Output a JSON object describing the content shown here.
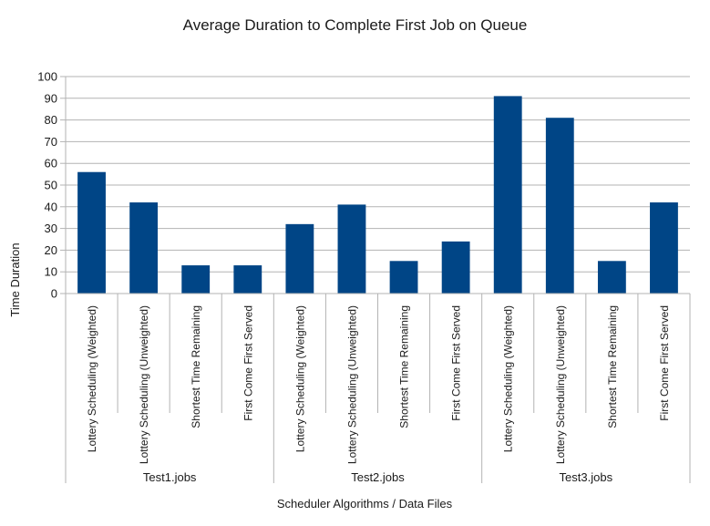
{
  "chart_data": {
    "type": "bar",
    "title": "Average Duration to Complete First Job on Queue",
    "xlabel": "Scheduler Algorithms / Data Files",
    "ylabel": "Time Duration",
    "ylim": [
      0,
      100
    ],
    "yticks": [
      0,
      10,
      20,
      30,
      40,
      50,
      60,
      70,
      80,
      90,
      100
    ],
    "grid": true,
    "legend": "none",
    "bar_color": "#004586",
    "groups": [
      {
        "name": "Test1.jobs",
        "categories": [
          "Lottery Scheduling (Weighted)",
          "Lottery Scheduling (Unweighted)",
          "Shortest Time Remaining",
          "First Come First Served"
        ],
        "values": [
          56,
          42,
          13,
          13
        ]
      },
      {
        "name": "Test2.jobs",
        "categories": [
          "Lottery Scheduling (Weighted)",
          "Lottery Scheduling (Unweighted)",
          "Shortest Time Remaining",
          "First Come First Served"
        ],
        "values": [
          32,
          41,
          15,
          24
        ]
      },
      {
        "name": "Test3.jobs",
        "categories": [
          "Lottery Scheduling (Weighted)",
          "Lottery Scheduling (Unweighted)",
          "Shortest Time Remaining",
          "First Come First Served"
        ],
        "values": [
          91,
          81,
          15,
          42
        ]
      }
    ]
  }
}
